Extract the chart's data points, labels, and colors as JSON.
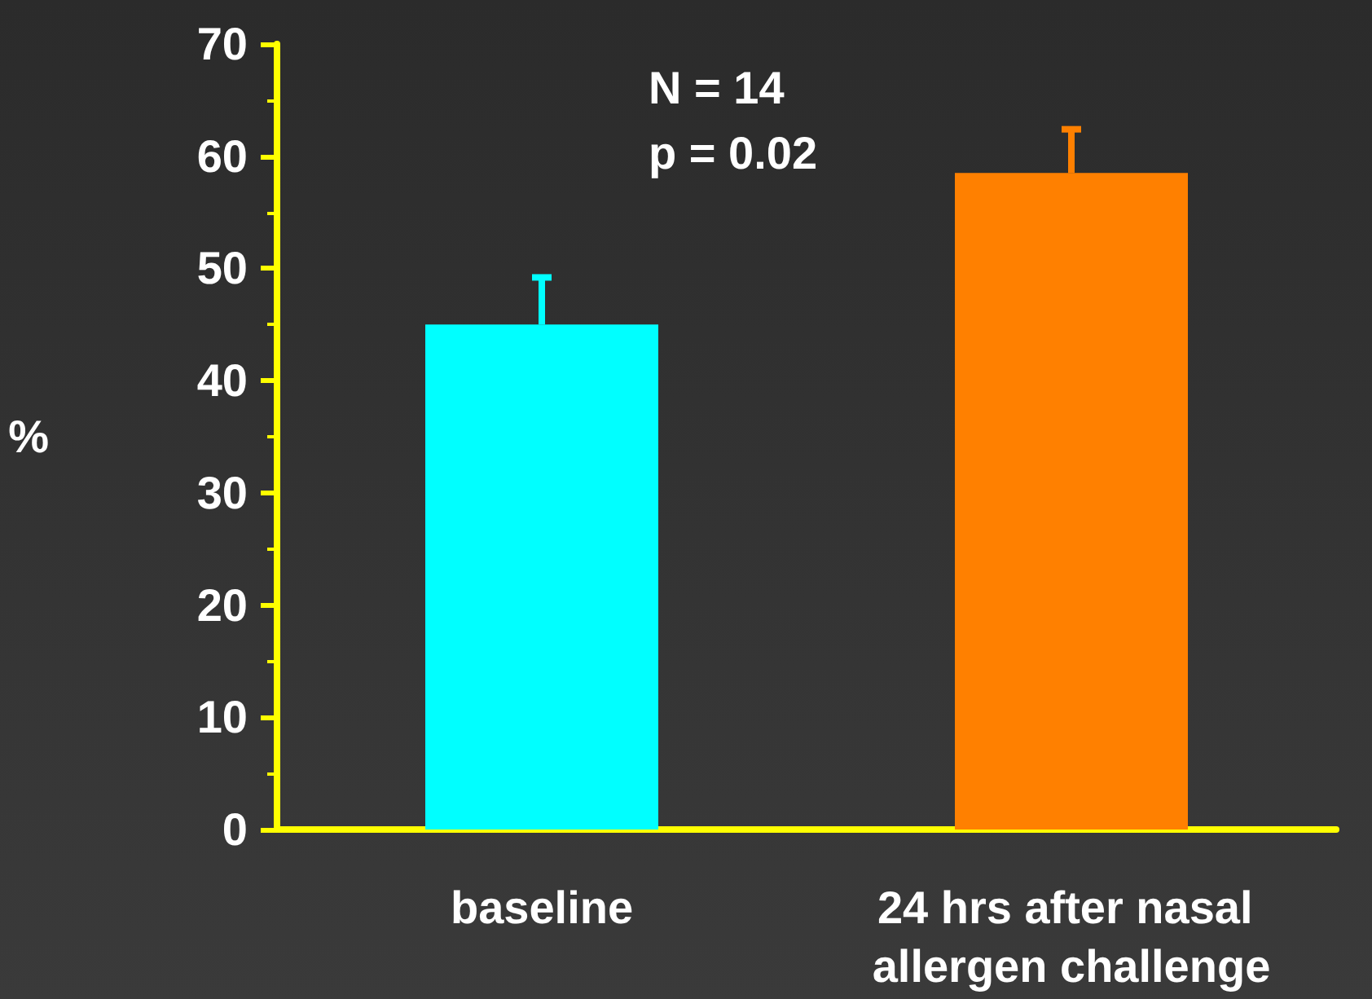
{
  "chart_data": {
    "type": "bar",
    "ylabel": "%",
    "categories": [
      "baseline",
      "24 hrs after nasal allergen challenge"
    ],
    "values": [
      45,
      58.5
    ],
    "colors": [
      "#00ffff",
      "#ff8000"
    ],
    "errors": [
      [
        45,
        49.2
      ],
      [
        58.5,
        62.4
      ]
    ],
    "ylim": [
      0,
      70
    ],
    "yticks": [
      0,
      10,
      20,
      30,
      40,
      50,
      60,
      70
    ],
    "annotations": [
      "N = 14",
      "p = 0.02"
    ],
    "grid": false
  }
}
